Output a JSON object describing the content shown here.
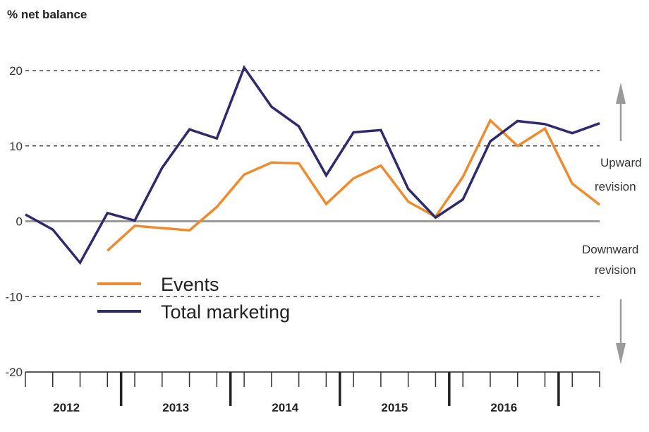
{
  "chart_data": {
    "type": "line",
    "ylabel": "% net balance",
    "ylim": [
      -20,
      20
    ],
    "yticks": [
      20,
      10,
      0,
      -10,
      -20
    ],
    "grid": "dashed horizontal at 20, 10, -10; solid zero line",
    "x": [
      "2012 Q1",
      "2012 Q2",
      "2012 Q3",
      "2012 Q4",
      "2013 Q1",
      "2013 Q2",
      "2013 Q3",
      "2013 Q4",
      "2014 Q1",
      "2014 Q2",
      "2014 Q3",
      "2014 Q4",
      "2015 Q1",
      "2015 Q2",
      "2015 Q3",
      "2015 Q4",
      "2016 Q1",
      "2016 Q2",
      "2016 Q3",
      "2016 Q4",
      "2017 Q1",
      "2017 Q2"
    ],
    "year_labels": [
      "2012",
      "2013",
      "2014",
      "2015",
      "2016"
    ],
    "series": [
      {
        "name": "Events",
        "color": "#f08a2c",
        "values": [
          null,
          null,
          null,
          -3.9,
          -0.6,
          -0.9,
          -1.2,
          1.9,
          6.2,
          7.8,
          7.7,
          2.3,
          5.7,
          7.4,
          2.6,
          0.6,
          5.9,
          13.4,
          10.0,
          12.3,
          5.0,
          2.2
        ]
      },
      {
        "name": "Total marketing",
        "color": "#2d2a6e",
        "values": [
          0.9,
          -1.1,
          -5.5,
          1.1,
          0.1,
          7.1,
          12.2,
          11.0,
          20.4,
          15.2,
          12.6,
          6.1,
          11.8,
          12.1,
          4.3,
          0.5,
          2.9,
          10.6,
          13.3,
          12.9,
          11.7,
          13.0
        ]
      }
    ],
    "legend": "lower-left inside plot",
    "annotations": {
      "up": "Upward revision",
      "up_line1": "Upward",
      "up_line2": "revision",
      "down_line1": "Downward",
      "down_line2": "revision"
    },
    "arrow_color": "#9a9a9a"
  }
}
